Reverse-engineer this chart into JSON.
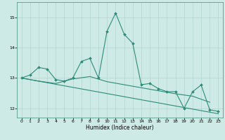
{
  "title": "",
  "xlabel": "Humidex (Indice chaleur)",
  "ylabel": "",
  "xlim": [
    -0.5,
    23.5
  ],
  "ylim": [
    11.7,
    15.5
  ],
  "yticks": [
    12,
    13,
    14,
    15
  ],
  "xticks": [
    0,
    1,
    2,
    3,
    4,
    5,
    6,
    7,
    8,
    9,
    10,
    11,
    12,
    13,
    14,
    15,
    16,
    17,
    18,
    19,
    20,
    21,
    22,
    23
  ],
  "line_color": "#2d8b78",
  "bg_color": "#ceeae7",
  "grid_color": "#aacfcc",
  "line1_x": [
    0,
    1,
    2,
    3,
    4,
    5,
    6,
    7,
    8,
    9,
    10,
    11,
    12,
    13,
    14,
    15,
    16,
    17,
    18,
    19,
    20,
    21,
    22,
    23
  ],
  "line1_y": [
    13.0,
    13.1,
    13.35,
    13.3,
    12.95,
    12.9,
    13.0,
    13.55,
    13.65,
    13.0,
    14.55,
    15.15,
    14.45,
    14.15,
    12.78,
    12.82,
    12.65,
    12.55,
    12.55,
    12.0,
    12.55,
    12.77,
    11.95,
    11.9
  ],
  "line2_x": [
    0,
    2,
    4,
    6,
    8,
    10,
    12,
    14,
    16,
    18,
    20,
    22
  ],
  "line2_y": [
    13.0,
    12.9,
    12.82,
    12.97,
    13.05,
    12.88,
    12.78,
    12.68,
    12.58,
    12.48,
    12.4,
    12.2
  ],
  "line3_x": [
    0,
    23
  ],
  "line3_y": [
    13.0,
    11.82
  ]
}
